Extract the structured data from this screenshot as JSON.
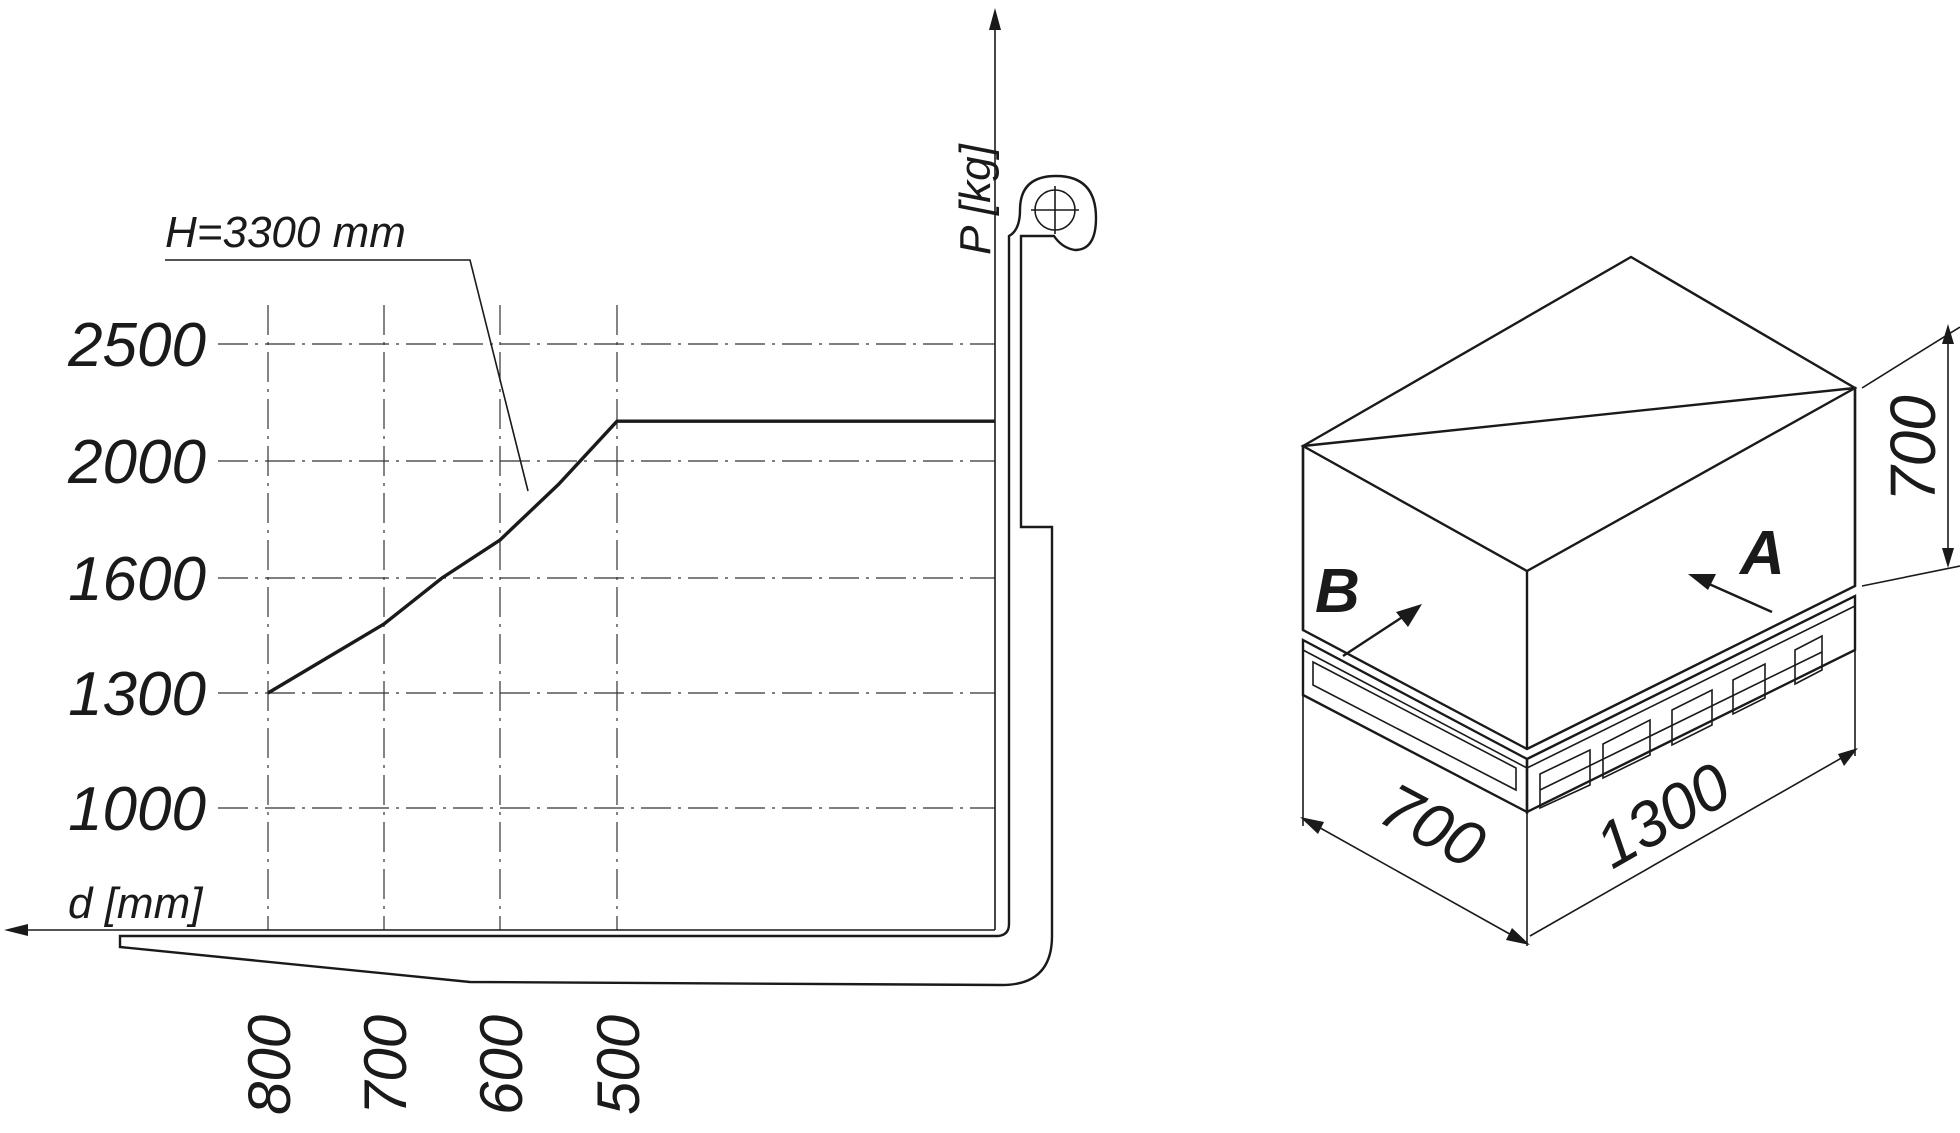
{
  "chart_data": {
    "type": "line",
    "title": "",
    "xlabel": "d [mm]",
    "ylabel": "P [kg]",
    "x_ticks": [
      "800",
      "700",
      "600",
      "500"
    ],
    "y_ticks": [
      "2500",
      "2000",
      "1600",
      "1300",
      "1000"
    ],
    "x_axis_reversed": true,
    "grid": true,
    "series": [
      {
        "name": "H=3300 mm",
        "x": [
          800,
          750,
          700,
          650,
          600,
          550,
          500,
          400,
          300,
          200,
          180
        ],
        "y": [
          1300,
          1390,
          1480,
          1600,
          1730,
          1920,
          2170,
          2170,
          2170,
          2170,
          2170
        ]
      }
    ]
  },
  "pallet": {
    "length_label": "1300",
    "width_label": "700",
    "height_label": "700",
    "side_a_label": "A",
    "side_b_label": "B"
  }
}
